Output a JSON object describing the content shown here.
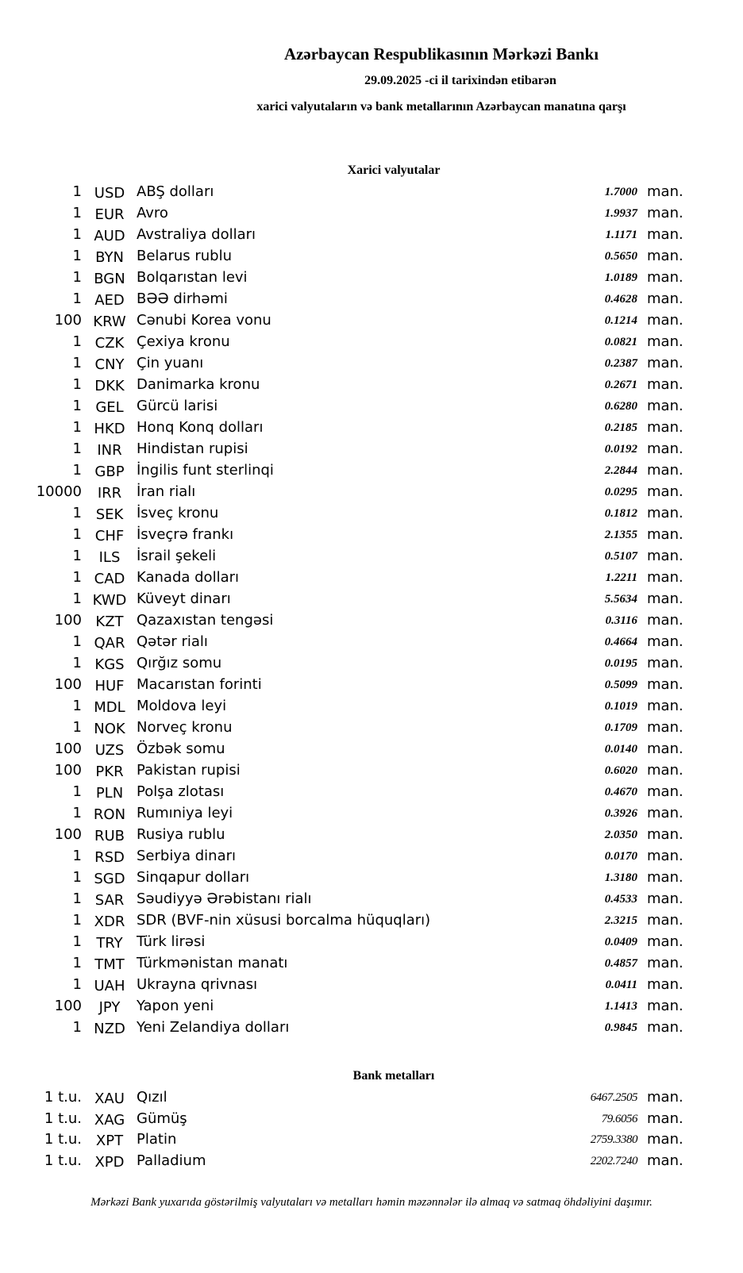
{
  "header": {
    "title": "Azərbaycan Respublikasının Mərkəzi Bankı",
    "date_line": "29.09.2025 -ci il tarixindən etibarən",
    "subtitle": "xarici valyutaların və bank metallarının Azərbaycan manatına qarşı"
  },
  "currencies": {
    "heading": "Xarici valyutalar",
    "unit": "man.",
    "rows": [
      {
        "qty": "1",
        "code": "USD",
        "name": "ABŞ dolları",
        "rate": "1.7000"
      },
      {
        "qty": "1",
        "code": "EUR",
        "name": "Avro",
        "rate": "1.9937"
      },
      {
        "qty": "1",
        "code": "AUD",
        "name": "Avstraliya dolları",
        "rate": "1.1171"
      },
      {
        "qty": "1",
        "code": "BYN",
        "name": "Belarus rublu",
        "rate": "0.5650"
      },
      {
        "qty": "1",
        "code": "BGN",
        "name": "Bolqarıstan levi",
        "rate": "1.0189"
      },
      {
        "qty": "1",
        "code": "AED",
        "name": "BƏƏ dirhəmi",
        "rate": "0.4628"
      },
      {
        "qty": "100",
        "code": "KRW",
        "name": "Cənubi Korea vonu",
        "rate": "0.1214"
      },
      {
        "qty": "1",
        "code": "CZK",
        "name": "Çexiya kronu",
        "rate": "0.0821"
      },
      {
        "qty": "1",
        "code": "CNY",
        "name": "Çin yuanı",
        "rate": "0.2387"
      },
      {
        "qty": "1",
        "code": "DKK",
        "name": "Danimarka kronu",
        "rate": "0.2671"
      },
      {
        "qty": "1",
        "code": "GEL",
        "name": "Gürcü larisi",
        "rate": "0.6280"
      },
      {
        "qty": "1",
        "code": "HKD",
        "name": "Honq Konq dolları",
        "rate": "0.2185"
      },
      {
        "qty": "1",
        "code": "INR",
        "name": "Hindistan rupisi",
        "rate": "0.0192"
      },
      {
        "qty": "1",
        "code": "GBP",
        "name": "İngilis funt sterlinqi",
        "rate": "2.2844"
      },
      {
        "qty": "10000",
        "code": "IRR",
        "name": "İran rialı",
        "rate": "0.0295"
      },
      {
        "qty": "1",
        "code": "SEK",
        "name": "İsveç kronu",
        "rate": "0.1812"
      },
      {
        "qty": "1",
        "code": "CHF",
        "name": "İsveçrə frankı",
        "rate": "2.1355"
      },
      {
        "qty": "1",
        "code": "ILS",
        "name": "İsrail şekeli",
        "rate": "0.5107"
      },
      {
        "qty": "1",
        "code": "CAD",
        "name": "Kanada dolları",
        "rate": "1.2211"
      },
      {
        "qty": "1",
        "code": "KWD",
        "name": "Küveyt dinarı",
        "rate": "5.5634"
      },
      {
        "qty": "100",
        "code": "KZT",
        "name": "Qazaxıstan tengəsi",
        "rate": "0.3116"
      },
      {
        "qty": "1",
        "code": "QAR",
        "name": "Qətər rialı",
        "rate": "0.4664"
      },
      {
        "qty": "1",
        "code": "KGS",
        "name": "Qırğız somu",
        "rate": "0.0195"
      },
      {
        "qty": "100",
        "code": "HUF",
        "name": "Macarıstan forinti",
        "rate": "0.5099"
      },
      {
        "qty": "1",
        "code": "MDL",
        "name": "Moldova leyi",
        "rate": "0.1019"
      },
      {
        "qty": "1",
        "code": "NOK",
        "name": "Norveç kronu",
        "rate": "0.1709"
      },
      {
        "qty": "100",
        "code": "UZS",
        "name": "Özbək somu",
        "rate": "0.0140"
      },
      {
        "qty": "100",
        "code": "PKR",
        "name": "Pakistan rupisi",
        "rate": "0.6020"
      },
      {
        "qty": "1",
        "code": "PLN",
        "name": "Polşa zlotası",
        "rate": "0.4670"
      },
      {
        "qty": "1",
        "code": "RON",
        "name": "Rumıniya leyi",
        "rate": "0.3926"
      },
      {
        "qty": "100",
        "code": "RUB",
        "name": "Rusiya rublu",
        "rate": "2.0350"
      },
      {
        "qty": "1",
        "code": "RSD",
        "name": "Serbiya dinarı",
        "rate": "0.0170"
      },
      {
        "qty": "1",
        "code": "SGD",
        "name": "Sinqapur dolları",
        "rate": "1.3180"
      },
      {
        "qty": "1",
        "code": "SAR",
        "name": "Səudiyyə Ərəbistanı rialı",
        "rate": "0.4533"
      },
      {
        "qty": "1",
        "code": "XDR",
        "name": "SDR (BVF-nin xüsusi borcalma hüquqları)",
        "rate": "2.3215"
      },
      {
        "qty": "1",
        "code": "TRY",
        "name": "Türk lirəsi",
        "rate": "0.0409"
      },
      {
        "qty": "1",
        "code": "TMT",
        "name": "Türkmənistan manatı",
        "rate": "0.4857"
      },
      {
        "qty": "1",
        "code": "UAH",
        "name": "Ukrayna qrivnası",
        "rate": "0.0411"
      },
      {
        "qty": "100",
        "code": "JPY",
        "name": "Yapon yeni",
        "rate": "1.1413"
      },
      {
        "qty": "1",
        "code": "NZD",
        "name": "Yeni Zelandiya dolları",
        "rate": "0.9845"
      }
    ]
  },
  "metals": {
    "heading": "Bank metalları",
    "unit": "man.",
    "rows": [
      {
        "qty": "1 t.u.",
        "code": "XAU",
        "name": "Qızıl",
        "rate": "6467.2505"
      },
      {
        "qty": "1 t.u.",
        "code": "XAG",
        "name": "Gümüş",
        "rate": "79.6056"
      },
      {
        "qty": "1 t.u.",
        "code": "XPT",
        "name": "Platin",
        "rate": "2759.3380"
      },
      {
        "qty": "1 t.u.",
        "code": "XPD",
        "name": "Palladium",
        "rate": "2202.7240"
      }
    ]
  },
  "footer": "Mərkəzi Bank yuxarıda göstərilmiş valyutaları və metalları həmin məzənnələr ilə almaq və satmaq öhdəliyini daşımır."
}
